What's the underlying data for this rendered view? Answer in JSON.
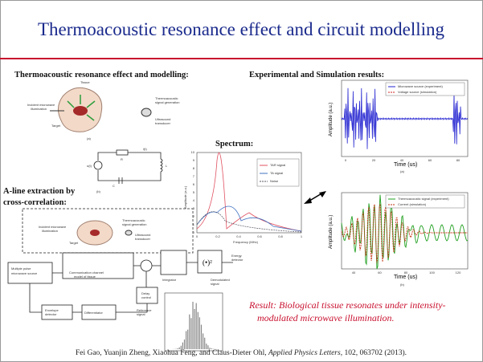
{
  "header": {
    "title": "Thermoacoustic resonance effect and circuit modelling"
  },
  "sections": {
    "left": "Thermoacoustic resonance effect and modelling:",
    "right": "Experimental and Simulation results:",
    "spectrum": "Spectrum:",
    "aline": [
      "A-line extraction by",
      "cross-correlation:"
    ]
  },
  "tissue_figure": {
    "tissue": "Tissue",
    "incident": [
      "Incident microwave",
      "illumination"
    ],
    "generation": [
      "Thermoacoustic",
      "signal generation"
    ],
    "target": "Target",
    "transducer": [
      "Ultrasound",
      "transducer"
    ],
    "panel": "(a)"
  },
  "circuit": {
    "source": "u(t)",
    "r": "R",
    "i": "i(t)",
    "l": "L",
    "c": "C",
    "panel": "(b)"
  },
  "block_diagram": {
    "source": [
      "Multiple pulse",
      "microwave source"
    ],
    "channel": [
      "Communication channel",
      "model of tissue"
    ],
    "integrator": "Integrator",
    "square": "(•)²",
    "energy": [
      "Energy",
      "detector"
    ],
    "demod": [
      "Demodulated",
      "signal"
    ],
    "delay": [
      "Delay",
      "control"
    ],
    "reference": [
      "Reference",
      "signal"
    ],
    "envelope": [
      "Envelope",
      "detector"
    ],
    "differentiator": "Differentiator"
  },
  "spectrum_chart": {
    "y_label": "Amplitude (a.u.)",
    "x_label": "Frequency (MHz)",
    "legend": [
      "TAR signal",
      "TA signal",
      "Noise"
    ],
    "xticks": [
      "0",
      "0.2",
      "0.4",
      "0.6",
      "0.8",
      "1"
    ],
    "yticks": [
      "0",
      "1",
      "2",
      "3",
      "4",
      "5",
      "6",
      "7",
      "8",
      "9",
      "10"
    ]
  },
  "result_a": {
    "y_label": "Amplitude (a.u.)",
    "x_label": "Time (us)",
    "legend": [
      "Microwave source (experiment)",
      "Voltage source (simulation)"
    ],
    "xticks": [
      "0",
      "20",
      "40",
      "60",
      "80"
    ],
    "panel": "(a)"
  },
  "result_b": {
    "y_label": "Amplitude (a.u.)",
    "x_label": "Time (us)",
    "legend": [
      "Thermoacoustic signal (experiment)",
      "Current (simulation)"
    ],
    "xticks": [
      "40",
      "60",
      "80",
      "100",
      "120"
    ],
    "panel": "(b)"
  },
  "result": [
    "Result: Biological tissue resonates under intensity-",
    "modulated microwave illumination."
  ],
  "citation": {
    "authors": "Fei Gao, Yuanjin Zheng, Xiaohua Feng, and Claus-Dieter Ohl, ",
    "journal": "Applied Physics Letters",
    "details": ", 102, 063702 (2013)."
  }
}
